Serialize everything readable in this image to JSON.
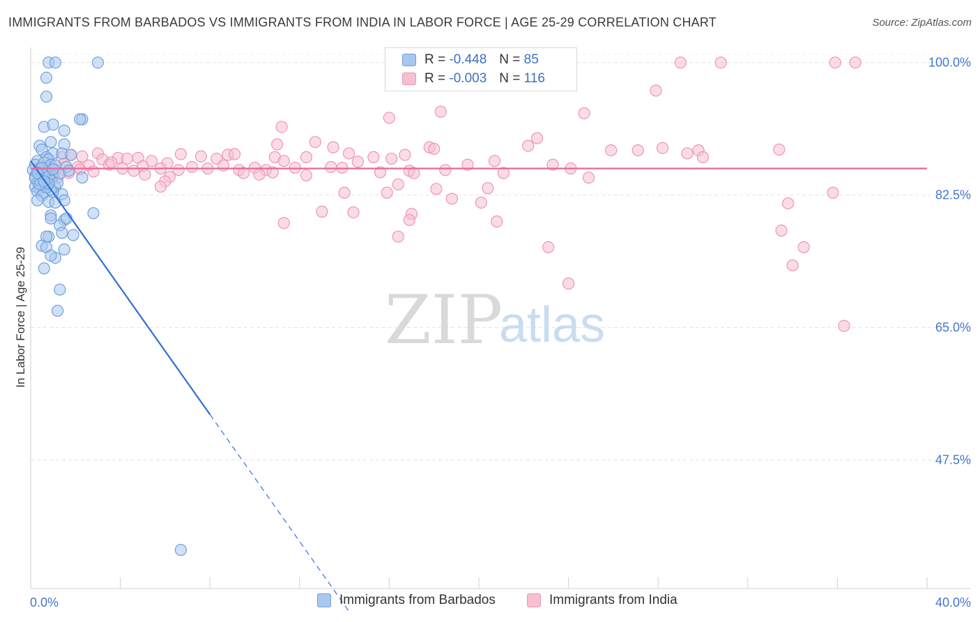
{
  "header": {
    "title": "IMMIGRANTS FROM BARBADOS VS IMMIGRANTS FROM INDIA IN LABOR FORCE | AGE 25-29 CORRELATION CHART",
    "source": "Source: ZipAtlas.com"
  },
  "legend": {
    "r_label": "R =",
    "n_label": "N =",
    "barbados": {
      "r": "-0.448",
      "n": "85"
    },
    "india": {
      "r": "-0.003",
      "n": "116"
    }
  },
  "watermark": {
    "zip": "ZIP",
    "atlas": "atlas"
  },
  "colors": {
    "barbados_fill": "#a9c8f0",
    "barbados_stroke": "#6f9fd9",
    "barbados_line": "#2f6fd0",
    "india_fill": "#f6bfd2",
    "india_stroke": "#ef94b4",
    "india_line": "#e6679a",
    "axis_label": "#4477cc"
  },
  "chart_data": {
    "type": "scatter",
    "title": "IMMIGRANTS FROM BARBADOS VS IMMIGRANTS FROM INDIA IN LABOR FORCE | AGE 25-29 CORRELATION CHART",
    "xlabel": "",
    "ylabel": "In Labor Force | Age 25-29",
    "xlim": [
      0,
      40
    ],
    "ylim": [
      30.5,
      102
    ],
    "x_tick_labels": [
      "0.0%",
      "40.0%"
    ],
    "y_ticks": [
      47.5,
      65.0,
      82.5,
      100.0
    ],
    "y_tick_labels": [
      "47.5%",
      "65.0%",
      "82.5%",
      "100.0%"
    ],
    "grid": true,
    "series": [
      {
        "name": "Immigrants from Barbados",
        "r": -0.448,
        "n": 85,
        "trend": {
          "solid": [
            [
              0.0,
              87.0
            ],
            [
              8.0,
              53.5
            ]
          ],
          "dashed": [
            [
              8.0,
              53.5
            ],
            [
              14.2,
              27.5
            ]
          ]
        },
        "points": [
          [
            0.8,
            100.0
          ],
          [
            1.1,
            100.0
          ],
          [
            3.0,
            100.0
          ],
          [
            0.7,
            98.0
          ],
          [
            0.7,
            95.5
          ],
          [
            2.3,
            92.5
          ],
          [
            2.2,
            92.5
          ],
          [
            0.6,
            91.5
          ],
          [
            1.0,
            91.8
          ],
          [
            1.5,
            91.0
          ],
          [
            0.4,
            89.0
          ],
          [
            0.9,
            89.5
          ],
          [
            1.5,
            89.2
          ],
          [
            0.5,
            88.5
          ],
          [
            1.0,
            88.0
          ],
          [
            1.4,
            88.0
          ],
          [
            0.7,
            87.5
          ],
          [
            1.8,
            87.8
          ],
          [
            0.3,
            87.0
          ],
          [
            0.8,
            87.2
          ],
          [
            0.2,
            86.5
          ],
          [
            0.6,
            86.8
          ],
          [
            1.6,
            86.2
          ],
          [
            0.4,
            86.0
          ],
          [
            0.9,
            86.5
          ],
          [
            0.1,
            85.8
          ],
          [
            0.3,
            85.5
          ],
          [
            0.5,
            85.2
          ],
          [
            0.7,
            85.6
          ],
          [
            1.0,
            85.0
          ],
          [
            1.3,
            85.3
          ],
          [
            0.2,
            85.0
          ],
          [
            0.4,
            84.8
          ],
          [
            0.6,
            84.5
          ],
          [
            0.8,
            84.9
          ],
          [
            0.3,
            84.2
          ],
          [
            0.5,
            84.0
          ],
          [
            0.9,
            84.4
          ],
          [
            2.3,
            84.8
          ],
          [
            0.2,
            83.6
          ],
          [
            0.4,
            83.3
          ],
          [
            0.7,
            83.8
          ],
          [
            1.1,
            83.6
          ],
          [
            0.3,
            83.0
          ],
          [
            0.6,
            82.8
          ],
          [
            1.4,
            82.6
          ],
          [
            0.5,
            82.4
          ],
          [
            1.0,
            82.9
          ],
          [
            0.3,
            81.8
          ],
          [
            0.8,
            81.6
          ],
          [
            1.5,
            81.8
          ],
          [
            1.1,
            81.5
          ],
          [
            2.8,
            80.1
          ],
          [
            0.9,
            79.8
          ],
          [
            1.5,
            79.2
          ],
          [
            0.9,
            79.4
          ],
          [
            1.3,
            78.5
          ],
          [
            1.6,
            79.4
          ],
          [
            1.4,
            77.5
          ],
          [
            0.8,
            77.0
          ],
          [
            1.9,
            77.2
          ],
          [
            0.7,
            77.0
          ],
          [
            0.5,
            75.8
          ],
          [
            0.7,
            75.6
          ],
          [
            1.5,
            75.3
          ],
          [
            1.1,
            74.2
          ],
          [
            0.9,
            74.5
          ],
          [
            0.6,
            72.8
          ],
          [
            1.3,
            70.0
          ],
          [
            1.2,
            67.2
          ],
          [
            6.7,
            35.6
          ],
          [
            0.4,
            84.6
          ],
          [
            0.6,
            85.1
          ],
          [
            1.2,
            84.1
          ],
          [
            0.9,
            83.2
          ],
          [
            0.2,
            84.7
          ],
          [
            0.5,
            86.1
          ],
          [
            0.7,
            83.5
          ],
          [
            1.1,
            86.4
          ],
          [
            0.3,
            85.4
          ],
          [
            0.8,
            84.0
          ],
          [
            1.7,
            85.7
          ],
          [
            0.4,
            83.9
          ],
          [
            0.6,
            84.3
          ],
          [
            1.0,
            85.9
          ]
        ]
      },
      {
        "name": "Immigrants from India",
        "r": -0.003,
        "n": 116,
        "trend": {
          "solid": [
            [
              0.0,
              86.0
            ],
            [
              40.0,
              86.0
            ]
          ]
        },
        "points": [
          [
            29.0,
            100.0
          ],
          [
            30.8,
            100.0
          ],
          [
            35.9,
            100.0
          ],
          [
            36.8,
            100.0
          ],
          [
            27.9,
            96.3
          ],
          [
            18.3,
            93.5
          ],
          [
            24.7,
            93.3
          ],
          [
            16.0,
            92.7
          ],
          [
            11.2,
            91.5
          ],
          [
            22.6,
            90.0
          ],
          [
            12.7,
            89.5
          ],
          [
            11.0,
            89.2
          ],
          [
            13.5,
            88.8
          ],
          [
            17.8,
            88.8
          ],
          [
            18.0,
            88.6
          ],
          [
            22.2,
            89.0
          ],
          [
            25.9,
            88.4
          ],
          [
            27.1,
            88.4
          ],
          [
            28.2,
            88.7
          ],
          [
            29.8,
            88.4
          ],
          [
            33.4,
            88.5
          ],
          [
            29.3,
            88.0
          ],
          [
            3.0,
            88.0
          ],
          [
            1.8,
            87.8
          ],
          [
            1.4,
            87.5
          ],
          [
            2.3,
            87.6
          ],
          [
            3.2,
            87.2
          ],
          [
            3.9,
            87.4
          ],
          [
            4.3,
            87.3
          ],
          [
            4.8,
            87.4
          ],
          [
            5.4,
            87.0
          ],
          [
            6.1,
            86.7
          ],
          [
            6.7,
            87.9
          ],
          [
            7.6,
            87.6
          ],
          [
            8.3,
            87.3
          ],
          [
            8.8,
            87.8
          ],
          [
            9.1,
            87.9
          ],
          [
            10.9,
            87.5
          ],
          [
            11.3,
            87.0
          ],
          [
            12.3,
            87.5
          ],
          [
            14.2,
            88.0
          ],
          [
            14.6,
            86.9
          ],
          [
            15.3,
            87.5
          ],
          [
            16.1,
            87.3
          ],
          [
            16.7,
            87.8
          ],
          [
            20.7,
            87.0
          ],
          [
            23.3,
            86.5
          ],
          [
            30.0,
            87.5
          ],
          [
            2.1,
            86.2
          ],
          [
            2.6,
            86.4
          ],
          [
            3.5,
            86.5
          ],
          [
            4.1,
            86.0
          ],
          [
            5.0,
            86.3
          ],
          [
            5.8,
            86.0
          ],
          [
            6.6,
            85.8
          ],
          [
            7.2,
            86.2
          ],
          [
            7.9,
            86.0
          ],
          [
            8.6,
            86.4
          ],
          [
            9.3,
            85.8
          ],
          [
            10.0,
            86.1
          ],
          [
            10.5,
            85.8
          ],
          [
            11.8,
            86.1
          ],
          [
            13.4,
            86.2
          ],
          [
            15.6,
            85.5
          ],
          [
            16.9,
            85.7
          ],
          [
            18.5,
            85.8
          ],
          [
            19.5,
            86.5
          ],
          [
            21.1,
            85.4
          ],
          [
            24.1,
            86.0
          ],
          [
            1.0,
            85.2
          ],
          [
            1.7,
            85.4
          ],
          [
            2.8,
            85.6
          ],
          [
            4.6,
            85.7
          ],
          [
            5.1,
            85.2
          ],
          [
            6.2,
            84.9
          ],
          [
            9.5,
            85.4
          ],
          [
            10.2,
            85.2
          ],
          [
            10.8,
            85.5
          ],
          [
            12.3,
            85.1
          ],
          [
            17.1,
            85.4
          ],
          [
            24.9,
            84.8
          ],
          [
            6.0,
            84.3
          ],
          [
            5.8,
            83.6
          ],
          [
            16.4,
            83.9
          ],
          [
            18.1,
            83.3
          ],
          [
            20.4,
            83.4
          ],
          [
            14.0,
            82.8
          ],
          [
            15.9,
            82.8
          ],
          [
            35.8,
            82.8
          ],
          [
            18.8,
            82.0
          ],
          [
            20.1,
            81.5
          ],
          [
            33.8,
            81.4
          ],
          [
            13.0,
            80.3
          ],
          [
            14.4,
            80.2
          ],
          [
            17.0,
            80.0
          ],
          [
            16.9,
            79.2
          ],
          [
            11.3,
            78.8
          ],
          [
            20.8,
            79.0
          ],
          [
            33.5,
            77.8
          ],
          [
            16.4,
            77.0
          ],
          [
            23.1,
            75.6
          ],
          [
            34.5,
            75.6
          ],
          [
            34.0,
            73.2
          ],
          [
            24.0,
            70.8
          ],
          [
            36.3,
            65.2
          ],
          [
            0.5,
            85.0
          ],
          [
            0.7,
            84.6
          ],
          [
            0.9,
            85.5
          ],
          [
            1.2,
            84.8
          ],
          [
            0.6,
            86.0
          ],
          [
            1.5,
            86.6
          ],
          [
            2.2,
            85.9
          ],
          [
            3.6,
            86.8
          ],
          [
            0.8,
            86.3
          ],
          [
            1.1,
            85.8
          ],
          [
            13.9,
            86.1
          ]
        ]
      }
    ]
  },
  "axes": {
    "y_label": "In Labor Force | Age 25-29",
    "x_min_label": "0.0%",
    "x_max_label": "40.0%"
  },
  "bottom_legend": {
    "barbados": "Immigrants from Barbados",
    "india": "Immigrants from India"
  }
}
